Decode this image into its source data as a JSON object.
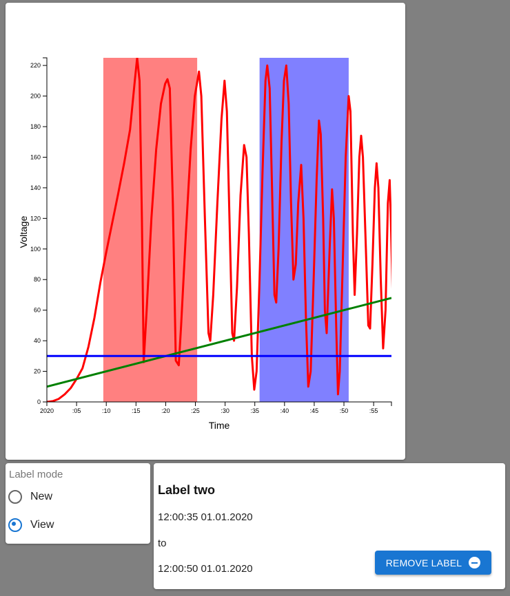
{
  "chart_data": {
    "type": "line",
    "xlabel": "Time",
    "ylabel": "Voltage",
    "ylim": [
      0,
      225
    ],
    "xlim": [
      0,
      58
    ],
    "x_ticks": [
      0,
      5,
      10,
      15,
      20,
      25,
      30,
      35,
      40,
      45,
      50,
      55
    ],
    "x_tick_labels": [
      "2020",
      ":05",
      ":10",
      ":15",
      ":20",
      ":25",
      ":30",
      ":35",
      ":40",
      ":45",
      ":50",
      ":55"
    ],
    "y_ticks": [
      0,
      20,
      40,
      60,
      80,
      100,
      120,
      140,
      160,
      180,
      200,
      220
    ],
    "grid": false,
    "regions": [
      {
        "x0": 9.5,
        "x1": 25.3,
        "color": "#ff8080"
      },
      {
        "x0": 35.8,
        "x1": 50.8,
        "color": "#8080ff"
      }
    ],
    "series": [
      {
        "color": "#ff0000",
        "points": [
          [
            0,
            0
          ],
          [
            1,
            0.5
          ],
          [
            2,
            2
          ],
          [
            3,
            5
          ],
          [
            4,
            9
          ],
          [
            5,
            15
          ],
          [
            6,
            22
          ],
          [
            7,
            36
          ],
          [
            8,
            55
          ],
          [
            9,
            78
          ],
          [
            10,
            98
          ],
          [
            11,
            117
          ],
          [
            12,
            136
          ],
          [
            13,
            156
          ],
          [
            14,
            178
          ],
          [
            14.8,
            210
          ],
          [
            15.2,
            225
          ],
          [
            15.6,
            210
          ],
          [
            16.0,
            120
          ],
          [
            16.3,
            26
          ],
          [
            16.8,
            60
          ],
          [
            17.6,
            120
          ],
          [
            18.4,
            165
          ],
          [
            19.2,
            195
          ],
          [
            19.9,
            208
          ],
          [
            20.3,
            211
          ],
          [
            20.7,
            205
          ],
          [
            21.2,
            130
          ],
          [
            21.7,
            27
          ],
          [
            22.2,
            24
          ],
          [
            22.6,
            50
          ],
          [
            23.4,
            110
          ],
          [
            24.2,
            165
          ],
          [
            24.9,
            200
          ],
          [
            25.6,
            216
          ],
          [
            26.0,
            200
          ],
          [
            26.6,
            120
          ],
          [
            27.2,
            45
          ],
          [
            27.5,
            40
          ],
          [
            28.0,
            70
          ],
          [
            28.7,
            130
          ],
          [
            29.4,
            185
          ],
          [
            29.9,
            210
          ],
          [
            30.3,
            190
          ],
          [
            30.8,
            110
          ],
          [
            31.2,
            45
          ],
          [
            31.5,
            40
          ],
          [
            32.0,
            75
          ],
          [
            32.6,
            135
          ],
          [
            33.2,
            168
          ],
          [
            33.6,
            160
          ],
          [
            34.0,
            110
          ],
          [
            34.5,
            30
          ],
          [
            34.9,
            8
          ],
          [
            35.3,
            20
          ],
          [
            35.8,
            80
          ],
          [
            36.3,
            150
          ],
          [
            36.8,
            210
          ],
          [
            37.1,
            220
          ],
          [
            37.5,
            205
          ],
          [
            37.9,
            140
          ],
          [
            38.3,
            70
          ],
          [
            38.6,
            65
          ],
          [
            39.0,
            100
          ],
          [
            39.5,
            170
          ],
          [
            39.9,
            210
          ],
          [
            40.3,
            220
          ],
          [
            40.7,
            195
          ],
          [
            41.1,
            130
          ],
          [
            41.5,
            80
          ],
          [
            41.9,
            90
          ],
          [
            42.3,
            130
          ],
          [
            42.8,
            155
          ],
          [
            43.2,
            120
          ],
          [
            43.6,
            55
          ],
          [
            44.0,
            10
          ],
          [
            44.4,
            20
          ],
          [
            44.9,
            80
          ],
          [
            45.4,
            145
          ],
          [
            45.8,
            184
          ],
          [
            46.1,
            175
          ],
          [
            46.5,
            120
          ],
          [
            46.8,
            60
          ],
          [
            47.1,
            45
          ],
          [
            47.6,
            100
          ],
          [
            48.0,
            139
          ],
          [
            48.3,
            120
          ],
          [
            48.7,
            50
          ],
          [
            49.0,
            5
          ],
          [
            49.3,
            20
          ],
          [
            49.8,
            90
          ],
          [
            50.3,
            160
          ],
          [
            50.8,
            200
          ],
          [
            51.1,
            190
          ],
          [
            51.5,
            110
          ],
          [
            51.8,
            70
          ],
          [
            52.2,
            110
          ],
          [
            52.6,
            160
          ],
          [
            52.9,
            174
          ],
          [
            53.2,
            160
          ],
          [
            53.7,
            100
          ],
          [
            54.1,
            50
          ],
          [
            54.4,
            48
          ],
          [
            54.8,
            90
          ],
          [
            55.2,
            140
          ],
          [
            55.5,
            156
          ],
          [
            55.8,
            140
          ],
          [
            56.2,
            80
          ],
          [
            56.6,
            35
          ],
          [
            57.0,
            60
          ],
          [
            57.4,
            130
          ],
          [
            57.7,
            145
          ],
          [
            57.9,
            120
          ],
          [
            58.2,
            70
          ],
          [
            58.5,
            40
          ],
          [
            58.8,
            30
          ],
          [
            59.1,
            60
          ],
          [
            59.4,
            130
          ],
          [
            59.7,
            145
          ],
          [
            60.0,
            144
          ]
        ]
      },
      {
        "color": "#008000",
        "points": [
          [
            0,
            10
          ],
          [
            58,
            68
          ]
        ]
      },
      {
        "color": "#0000ff",
        "points": [
          [
            0,
            30
          ],
          [
            58,
            30
          ]
        ]
      }
    ]
  },
  "label_mode": {
    "title": "Label mode",
    "options": [
      {
        "label": "New",
        "selected": false
      },
      {
        "label": "View",
        "selected": true
      }
    ]
  },
  "label_panel": {
    "title": "Label two",
    "start": "12:00:35 01.01.2020",
    "to": "to",
    "end": "12:00:50 01.01.2020",
    "remove_label": "REMOVE LABEL",
    "remove_icon": "minus-circle-icon",
    "button_color": "#1976d2"
  }
}
